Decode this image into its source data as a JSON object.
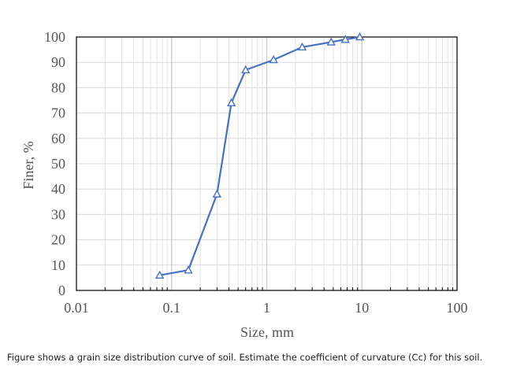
{
  "chart_data": {
    "type": "line",
    "xscale": "log",
    "xlim": [
      0.01,
      100
    ],
    "ylim": [
      0,
      100
    ],
    "xlabel": "Size, mm",
    "ylabel": "Finer, %",
    "xticks": [
      "0.01",
      "0.1",
      "1",
      "10",
      "100"
    ],
    "yticks": [
      "0",
      "10",
      "20",
      "30",
      "40",
      "50",
      "60",
      "70",
      "80",
      "90",
      "100"
    ],
    "grid": true,
    "legend": "none",
    "marker": "triangle",
    "series": [
      {
        "color": "#4472C4",
        "x": [
          0.075,
          0.15,
          0.3,
          0.425,
          0.6,
          1.18,
          2.36,
          4.75,
          6.7,
          9.5
        ],
        "y": [
          6,
          8,
          38,
          74,
          87,
          91,
          96,
          98,
          99,
          100
        ]
      }
    ]
  },
  "caption": "Figure shows a grain size distribution curve of soil. Estimate the coefficient of curvature (Cc) for this soil."
}
